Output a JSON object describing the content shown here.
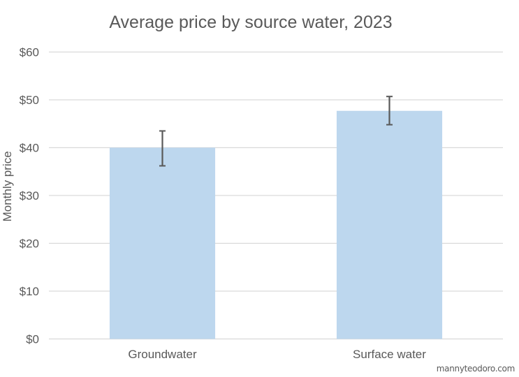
{
  "chart_data": {
    "type": "bar",
    "title": "Average price by source water, 2023",
    "xlabel": "",
    "ylabel": "Monthly price",
    "categories": [
      "Groundwater",
      "Surface water"
    ],
    "values": [
      40.0,
      47.7
    ],
    "error_bars": [
      {
        "low": 36.2,
        "high": 43.5
      },
      {
        "low": 44.8,
        "high": 50.7
      }
    ],
    "ylim": [
      0,
      60
    ],
    "yticks": [
      0,
      10,
      20,
      30,
      40,
      50,
      60
    ],
    "ytick_labels": [
      "$0",
      "$10",
      "$20",
      "$30",
      "$40",
      "$50",
      "$60"
    ],
    "grid": true,
    "legend": "none",
    "colors": {
      "bar": "#bdd7ee",
      "error_bar": "#595959",
      "grid": "#d9d9d9",
      "text": "#595959"
    }
  },
  "credit": "mannyteodoro.com"
}
